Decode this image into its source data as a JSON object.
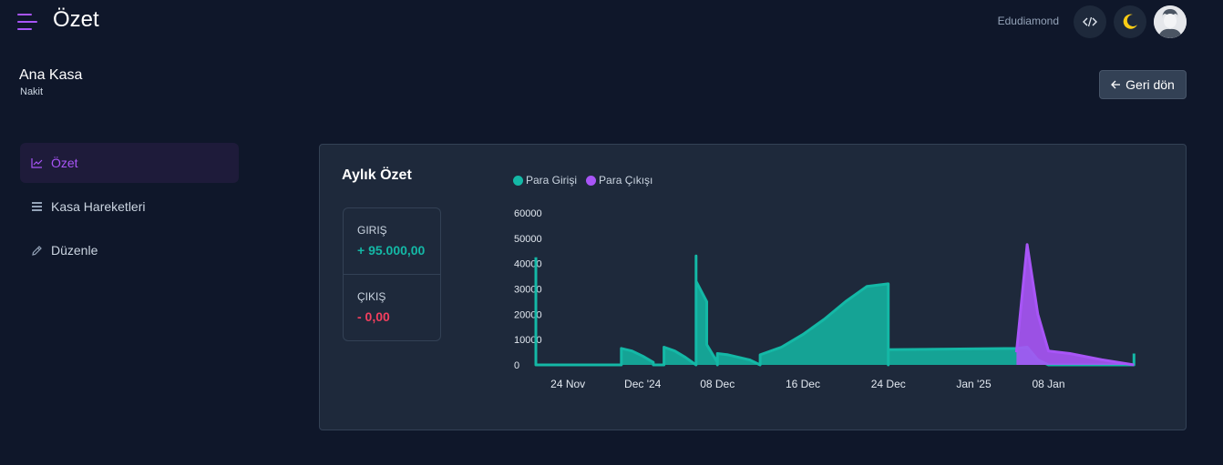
{
  "header": {
    "title": "Özet",
    "username": "Edudiamond",
    "menu_icon": "hamburger-icon",
    "code_icon": "code-icon",
    "theme_icon": "moon-icon",
    "accent_color": "#a855f7",
    "moon_color": "#facc15"
  },
  "cashbox": {
    "name": "Ana Kasa",
    "type": "Nakit",
    "back_label": "Geri dön",
    "back_icon": "arrow-left-icon"
  },
  "sidebar": {
    "items": [
      {
        "label": "Özet",
        "icon": "chart-icon",
        "active": true
      },
      {
        "label": "Kasa Hareketleri",
        "icon": "list-icon",
        "active": false
      },
      {
        "label": "Düzenle",
        "icon": "pencil-icon",
        "active": false
      }
    ]
  },
  "summary": {
    "title": "Aylık Özet",
    "income_label": "GIRIŞ",
    "income_value": "+ 95.000,00",
    "income_color": "#14b8a6",
    "expense_label": "ÇIKIŞ",
    "expense_value": "- 0,00",
    "expense_color": "#f43f5e"
  },
  "chart_data": {
    "type": "area",
    "y_ticks": [
      "60000",
      "50000",
      "40000",
      "30000",
      "20000",
      "10000",
      "0"
    ],
    "ylim": [
      0,
      60000
    ],
    "x_tick_labels": [
      "24 Nov",
      "Dec '24",
      "08 Dec",
      "16 Dec",
      "24 Dec",
      "Jan '25",
      "08 Jan"
    ],
    "x_range": [
      "2024-11-21",
      "2025-01-17"
    ],
    "x_ticks_dates": [
      "2024-11-24",
      "2024-12-01",
      "2024-12-08",
      "2024-12-16",
      "2024-12-24",
      "2025-01-01",
      "2025-01-08"
    ],
    "legend_position": "top",
    "grid": false,
    "series": [
      {
        "name": "Para Girişi",
        "color": "#14b8a6",
        "points": [
          [
            "2024-11-21",
            42500
          ],
          [
            "2024-11-21",
            0
          ],
          [
            "2024-11-29",
            0
          ],
          [
            "2024-11-29",
            6500
          ],
          [
            "2024-11-30",
            5500
          ],
          [
            "2024-12-01",
            3500
          ],
          [
            "2024-12-02",
            1000
          ],
          [
            "2024-12-02",
            0
          ],
          [
            "2024-12-03",
            0
          ],
          [
            "2024-12-03",
            7000
          ],
          [
            "2024-12-04",
            5500
          ],
          [
            "2024-12-05",
            3000
          ],
          [
            "2024-12-06",
            0.5
          ],
          [
            "2024-12-06",
            43000
          ],
          [
            "2024-12-06",
            33000
          ],
          [
            "2024-12-07",
            25000
          ],
          [
            "2024-12-07",
            8000
          ],
          [
            "2024-12-08",
            1000
          ],
          [
            "2024-12-08",
            0
          ],
          [
            "2024-12-08",
            4500
          ],
          [
            "2024-12-09",
            4000
          ],
          [
            "2024-12-11",
            2000
          ],
          [
            "2024-12-12",
            0
          ],
          [
            "2024-12-12",
            4000
          ],
          [
            "2024-12-14",
            7000
          ],
          [
            "2024-12-16",
            12000
          ],
          [
            "2024-12-18",
            18000
          ],
          [
            "2024-12-20",
            25000
          ],
          [
            "2024-12-22",
            31000
          ],
          [
            "2024-12-24",
            32000
          ],
          [
            "2024-12-24",
            0
          ],
          [
            "2024-12-24",
            6000
          ],
          [
            "2025-01-05",
            6500
          ],
          [
            "2025-01-06",
            7000
          ],
          [
            "2025-01-07",
            2000
          ],
          [
            "2025-01-08",
            0
          ],
          [
            "2025-01-16",
            0
          ],
          [
            "2025-01-16",
            4500
          ]
        ]
      },
      {
        "name": "Para Çıkışı",
        "color": "#a855f7",
        "points": [
          [
            "2025-01-05",
            5000
          ],
          [
            "2025-01-06",
            47500
          ],
          [
            "2025-01-07",
            20000
          ],
          [
            "2025-01-08",
            5500
          ],
          [
            "2025-01-10",
            4500
          ],
          [
            "2025-01-13",
            2000
          ],
          [
            "2025-01-16",
            0
          ]
        ]
      }
    ]
  }
}
